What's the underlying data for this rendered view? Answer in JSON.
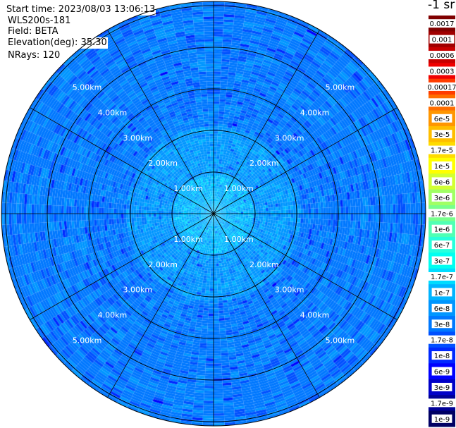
{
  "header": {
    "start_time": "Start time: 2023/08/03 13:06:13",
    "instrument": "WLS200s-181",
    "field": "Field: BETA",
    "elevation": "Elevation(deg): 35.30",
    "nrays": "NRays: 120"
  },
  "colorbar": {
    "unit_label": "-1 sr",
    "ticks": [
      "0.0017",
      "0.001",
      "0.0006",
      "0.0003",
      "0.00017",
      "0.0001",
      "6e-5",
      "3e-5",
      "1.7e-5",
      "1e-5",
      "6e-6",
      "3e-6",
      "1.7e-6",
      "1e-6",
      "6e-7",
      "3e-7",
      "1.7e-7",
      "1e-7",
      "6e-8",
      "3e-8",
      "1.7e-8",
      "1e-8",
      "6e-9",
      "3e-9",
      "1.7e-9",
      "1e-9"
    ],
    "colors": [
      "#800000",
      "#a00000",
      "#c80000",
      "#f00000",
      "#ff3c00",
      "#ff6e00",
      "#ff9600",
      "#ffbe00",
      "#ffdc00",
      "#ffff00",
      "#d2ff32",
      "#a0ff64",
      "#78ff8c",
      "#50ffb4",
      "#28ffdc",
      "#00fff0",
      "#00dcff",
      "#00b4ff",
      "#0096ff",
      "#0078ff",
      "#0050ff",
      "#0028ff",
      "#0000ff",
      "#0000c8",
      "#000096",
      "#000064"
    ]
  },
  "chart_data": {
    "type": "heatmap",
    "subtype": "polar-ppi",
    "field": "BETA",
    "elevation_deg": 35.3,
    "n_rays": 120,
    "range_ring_labels": [
      "1.00km",
      "2.00km",
      "3.00km",
      "4.00km",
      "5.00km"
    ],
    "range_rings_km": [
      1,
      2,
      3,
      4,
      5
    ],
    "spoke_angles_deg": [
      0,
      30,
      60,
      90,
      120,
      150,
      180,
      210,
      240,
      270,
      300,
      330
    ],
    "max_range_km": 5.1,
    "value_by_range": [
      {
        "range_km": [
          0.0,
          0.9
        ],
        "level": "1e-7"
      },
      {
        "range_km": [
          0.9,
          2.1
        ],
        "level": "6e-8"
      },
      {
        "range_km": [
          2.1,
          5.1
        ],
        "level": "3e-8"
      }
    ],
    "grid": true
  }
}
